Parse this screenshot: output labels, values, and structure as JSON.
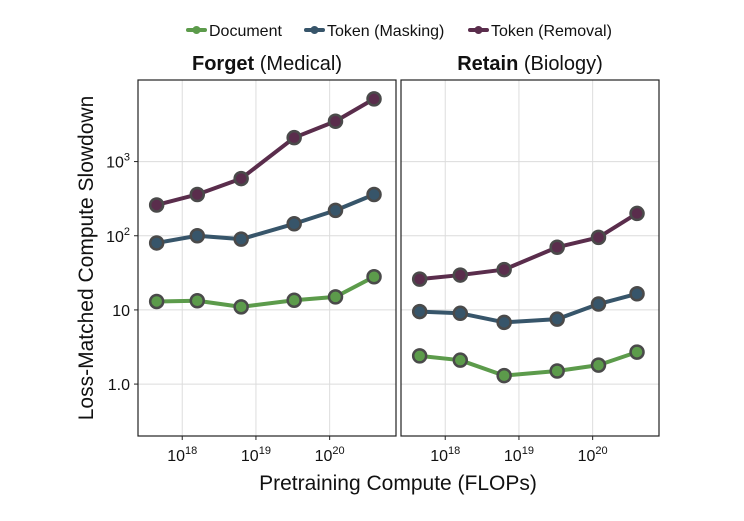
{
  "chart_data": {
    "type": "line",
    "legend": {
      "placement": "top",
      "entries": [
        {
          "name": "Document",
          "color": "#5c9b4b"
        },
        {
          "name": "Token (Masking)",
          "color": "#37556a"
        },
        {
          "name": "Token (Removal)",
          "color": "#5a2d4c"
        }
      ]
    },
    "ylabel": "Loss-Matched Compute Slowdown",
    "xlabel": "Pretraining Compute (FLOPs)",
    "xscale": "log",
    "yscale": "log",
    "grid": true,
    "x": [
      4.5e+17,
      1.6e+18,
      6.3e+18,
      3.3e+19,
      1.2e+20,
      4e+20
    ],
    "x_ticks": [
      {
        "value": 1e+18,
        "base": "10",
        "exp": "18"
      },
      {
        "value": 1e+19,
        "base": "10",
        "exp": "19"
      },
      {
        "value": 1e+20,
        "base": "10",
        "exp": "20"
      }
    ],
    "y_ticks": [
      {
        "value": 1,
        "label": "1.0"
      },
      {
        "value": 10,
        "label": "10"
      },
      {
        "value": 100,
        "base": "10",
        "exp": "2"
      },
      {
        "value": 1000,
        "base": "10",
        "exp": "3"
      }
    ],
    "panels": [
      {
        "title_bold": "Forget",
        "title_rest": " (Medical)",
        "series": [
          {
            "name": "Document",
            "values": [
              13,
              13.3,
              11,
              13.5,
              15,
              28
            ]
          },
          {
            "name": "Token (Masking)",
            "values": [
              80,
              100,
              90,
              145,
              220,
              360
            ]
          },
          {
            "name": "Token (Removal)",
            "values": [
              260,
              360,
              590,
              2100,
              3500,
              7000
            ]
          }
        ]
      },
      {
        "title_bold": "Retain",
        "title_rest": " (Biology)",
        "series": [
          {
            "name": "Document",
            "values": [
              2.4,
              2.1,
              1.3,
              1.5,
              1.8,
              2.7
            ]
          },
          {
            "name": "Token (Masking)",
            "values": [
              9.5,
              9,
              6.8,
              7.5,
              12,
              16.5
            ]
          },
          {
            "name": "Token (Removal)",
            "values": [
              26,
              29.5,
              35,
              70,
              95,
              200
            ]
          }
        ]
      }
    ]
  }
}
